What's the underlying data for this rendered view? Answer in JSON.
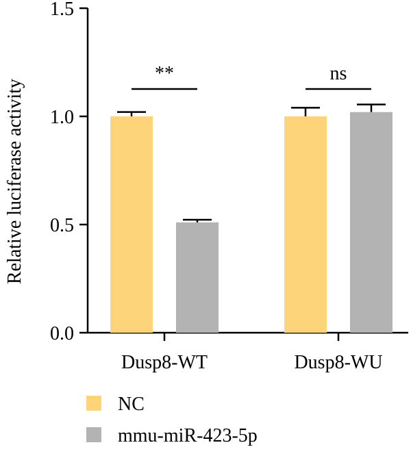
{
  "chart_data": {
    "type": "bar",
    "ylabel": "Relative luciferase activity",
    "xlabel": "",
    "ylim": [
      0,
      1.5
    ],
    "yticks": [
      "0.0",
      "0.5",
      "1.0",
      "1.5"
    ],
    "ytick_values": [
      0,
      0.5,
      1.0,
      1.5
    ],
    "categories": [
      "Dusp8-WT",
      "Dusp8-WU"
    ],
    "series": [
      {
        "name": "NC",
        "color": "#FDD47A",
        "values": [
          1.0,
          1.0
        ],
        "errors": [
          0.02,
          0.04
        ]
      },
      {
        "name": "mmu-miR-423-5p",
        "color": "#B3B3B3",
        "values": [
          0.51,
          1.02
        ],
        "errors": [
          0.012,
          0.035
        ]
      }
    ],
    "significance": [
      {
        "category": "Dusp8-WT",
        "label": "**"
      },
      {
        "category": "Dusp8-WU",
        "label": "ns"
      }
    ],
    "legend_position": "bottom-left",
    "grid": false
  }
}
